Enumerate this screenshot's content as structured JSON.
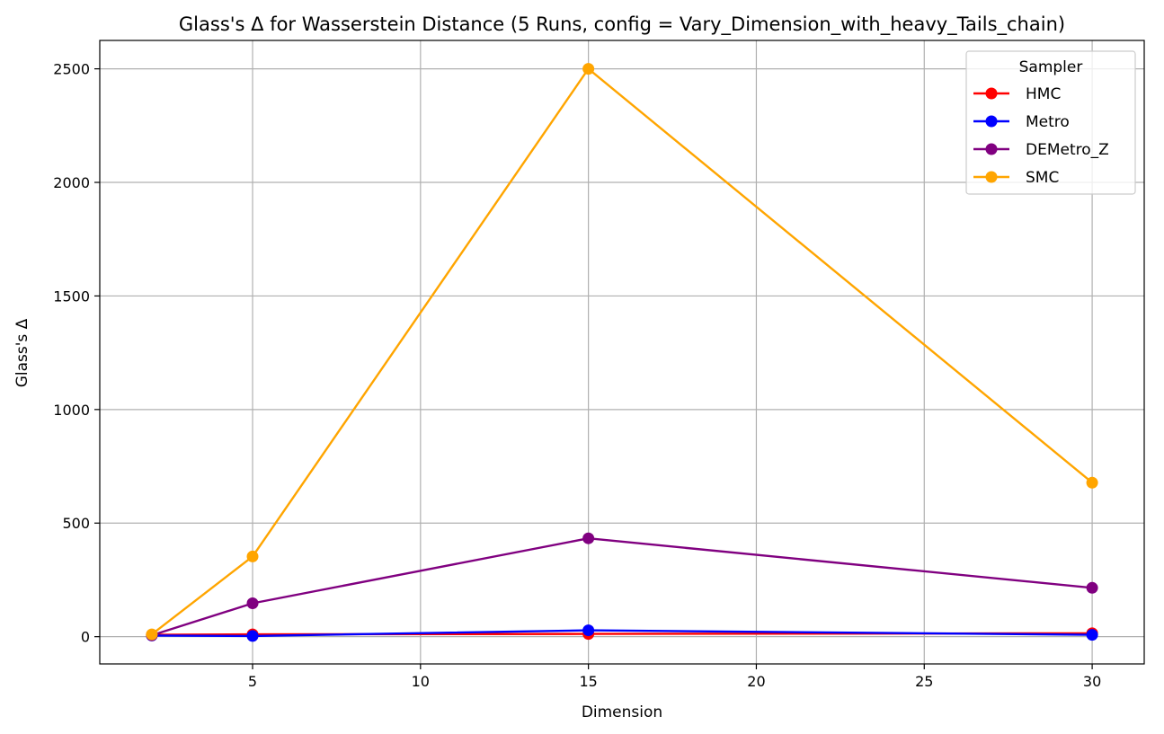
{
  "chart_data": {
    "type": "line",
    "title": "Glass's Δ for Wasserstein Distance (5 Runs, config = Vary_Dimension_with_heavy_Tails_chain)",
    "xlabel": "Dimension",
    "ylabel": "Glass's Δ",
    "x": [
      2,
      5,
      15,
      30
    ],
    "xlim": [
      0.45,
      31.55
    ],
    "ylim": [
      -120,
      2625
    ],
    "xticks": [
      5,
      10,
      15,
      20,
      25,
      30
    ],
    "yticks": [
      0,
      500,
      1000,
      1500,
      2000,
      2500
    ],
    "grid": true,
    "legend": {
      "title": "Sampler",
      "placement": "top-right"
    },
    "series": [
      {
        "name": "HMC",
        "color": "#ff0000",
        "values": [
          8,
          10,
          12,
          15
        ]
      },
      {
        "name": "Metro",
        "color": "#0000ff",
        "values": [
          5,
          3,
          28,
          8
        ]
      },
      {
        "name": "DEMetro_Z",
        "color": "#800080",
        "values": [
          6,
          147,
          433,
          215
        ]
      },
      {
        "name": "SMC",
        "color": "#ffa500",
        "values": [
          10,
          353,
          2500,
          678
        ]
      }
    ]
  }
}
